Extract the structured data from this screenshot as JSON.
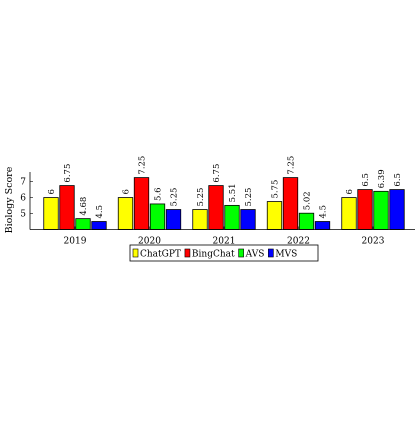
{
  "chart_data": {
    "type": "bar",
    "title": "",
    "xlabel": "",
    "ylabel": "Biology Score",
    "categories": [
      "2019",
      "2020",
      "2021",
      "2022",
      "2023"
    ],
    "series": [
      {
        "name": "ChatGPT",
        "color": "#ffff00",
        "values": [
          6,
          6,
          5.25,
          5.75,
          6
        ],
        "labels": [
          "6",
          "6",
          "5.25",
          "5.75",
          "6"
        ]
      },
      {
        "name": "BingChat",
        "color": "#ff0000",
        "values": [
          6.75,
          7.25,
          6.75,
          7.25,
          6.5
        ],
        "labels": [
          "6.75",
          "7.25",
          "6.75",
          "7.25",
          "6.5"
        ]
      },
      {
        "name": "AVS",
        "color": "#00ff00",
        "values": [
          4.68,
          5.6,
          5.51,
          5.02,
          6.39
        ],
        "labels": [
          "4.68",
          "5.6",
          "5.51",
          "5.02",
          "6.39"
        ]
      },
      {
        "name": "MVS",
        "color": "#0000ff",
        "values": [
          4.5,
          5.25,
          5.25,
          4.5,
          6.5
        ],
        "labels": [
          "4.5",
          "5.25",
          "5.25",
          "4.5",
          "6.5"
        ]
      }
    ],
    "yticks": [
      5,
      6,
      7
    ],
    "ylim": [
      4,
      7.6
    ],
    "grid": false,
    "legend_position": "bottom-center"
  }
}
